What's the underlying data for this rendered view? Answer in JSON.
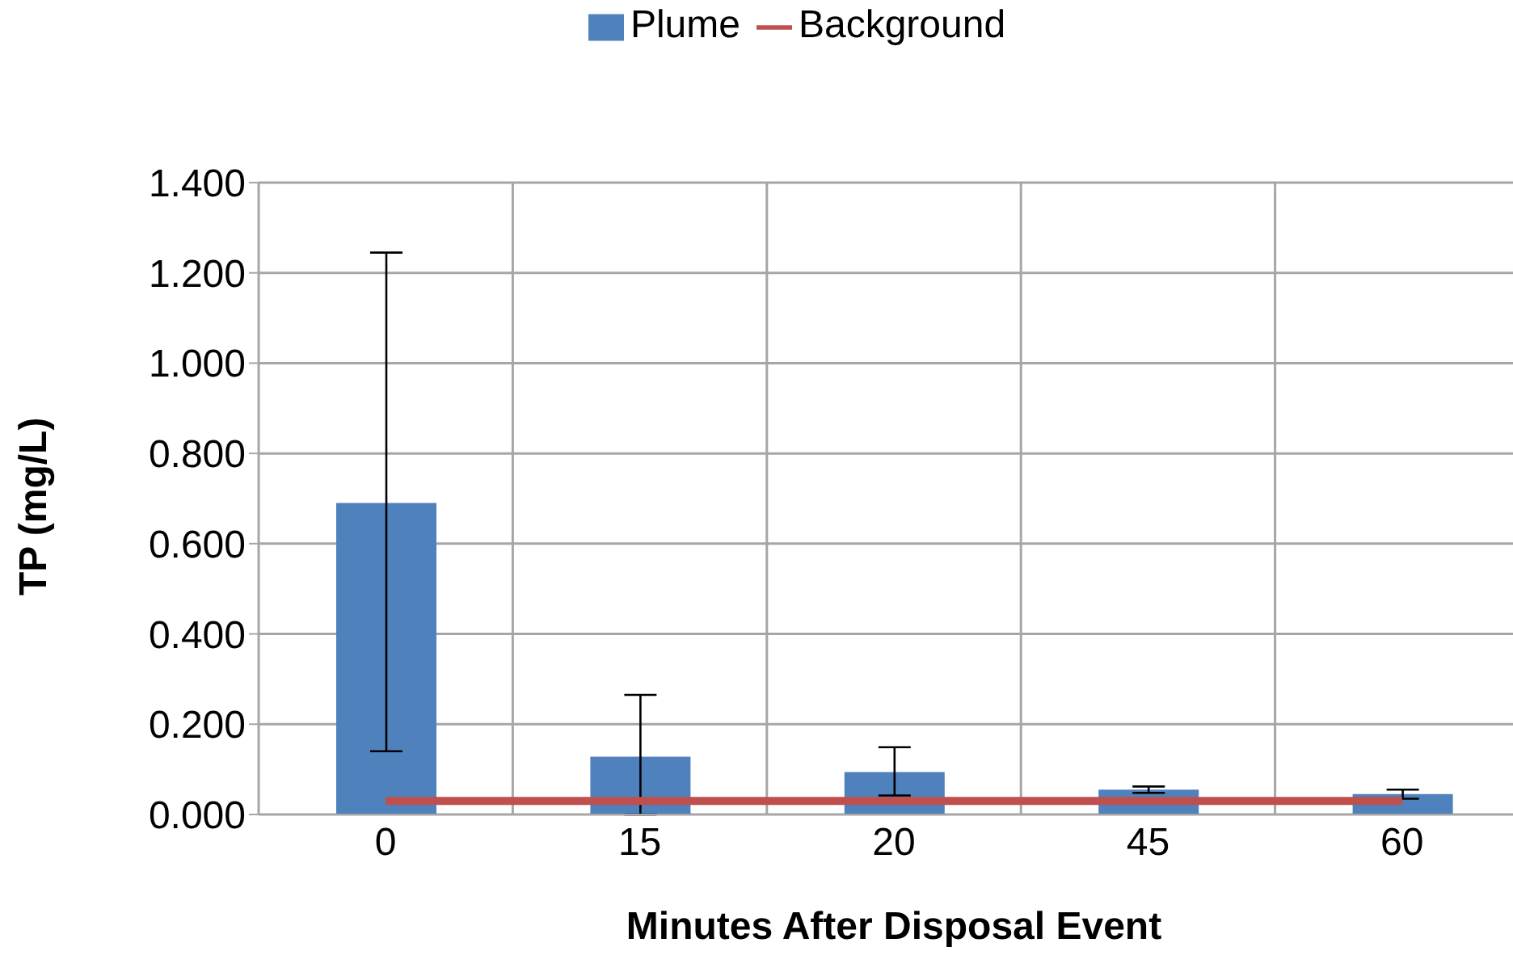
{
  "chart_data": {
    "type": "bar",
    "xlabel": "Minutes After Disposal Event",
    "ylabel": "TP (mg/L)",
    "categories": [
      "0",
      "15",
      "20",
      "45",
      "60"
    ],
    "series": [
      {
        "name": "Plume",
        "color": "#4f81bd",
        "values": [
          0.69,
          0.128,
          0.094,
          0.055,
          0.045
        ],
        "errors": [
          [
            0.14,
            1.245
          ],
          [
            0.0,
            0.265
          ],
          [
            0.042,
            0.149
          ],
          [
            0.048,
            0.062
          ],
          [
            0.035,
            0.055
          ]
        ]
      },
      {
        "name": "Background",
        "type": "line",
        "color": "#c0504d",
        "values": [
          0.03,
          0.03,
          0.03,
          0.03,
          0.03
        ]
      }
    ],
    "ylim": [
      0,
      1.4
    ],
    "yticks": [
      {
        "value": 0,
        "label": "0.000"
      },
      {
        "value": 0.2,
        "label": "0.200"
      },
      {
        "value": 0.4,
        "label": "0.400"
      },
      {
        "value": 0.6,
        "label": "0.600"
      },
      {
        "value": 0.8,
        "label": "0.800"
      },
      {
        "value": 1,
        "label": "1.000"
      },
      {
        "value": 1.2,
        "label": "1.200"
      },
      {
        "value": 1.4,
        "label": "1.400"
      }
    ],
    "grid": true,
    "legend": "top",
    "marker": "none"
  }
}
